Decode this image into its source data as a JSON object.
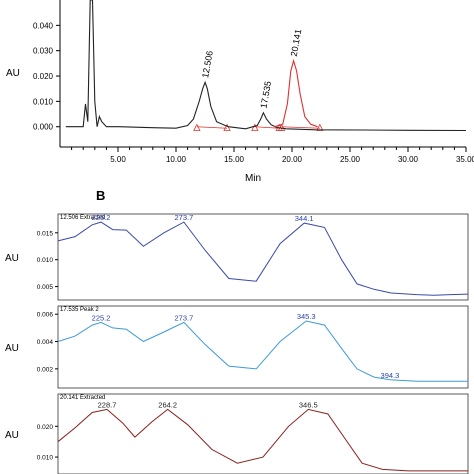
{
  "panel_b_label": "B",
  "chart_data": [
    {
      "type": "line",
      "xlabel": "Min",
      "ylabel": "AU",
      "xlim": [
        0,
        35
      ],
      "ylim": [
        -0.008,
        0.05
      ],
      "x_ticks": [
        "5.00",
        "10.00",
        "15.00",
        "20.00",
        "25.00",
        "30.00",
        "35.00"
      ],
      "y_ticks": [
        "0.000",
        "0.010",
        "0.020",
        "0.030",
        "0.040"
      ],
      "peak_labels": [
        "12.506",
        "17.535",
        "20.141"
      ],
      "series": [
        {
          "color": "#222222",
          "x": [
            0.5,
            1.5,
            2.0,
            2.2,
            2.4,
            2.6,
            2.8,
            3.0,
            3.2,
            3.4,
            3.6,
            4.0,
            5.0,
            8.0,
            10.0,
            11.0,
            11.5,
            12.0,
            12.3,
            12.506,
            12.7,
            13.0,
            13.5,
            14.5,
            16.0,
            17.0,
            17.3,
            17.535,
            17.8,
            18.2,
            18.7,
            19.5,
            22.0,
            26.0,
            30.0,
            35.0
          ],
          "y": [
            0.0,
            0.0,
            0.0,
            0.009,
            0.002,
            0.05,
            0.05,
            0.01,
            0.0,
            0.004,
            0.002,
            0.0,
            0.0,
            -0.0004,
            -0.0006,
            0.0005,
            0.003,
            0.01,
            0.015,
            0.0175,
            0.015,
            0.008,
            0.002,
            0.0,
            -0.0008,
            0.0005,
            0.003,
            0.0055,
            0.003,
            0.0008,
            -0.0003,
            -0.0008,
            -0.0012,
            -0.0013,
            -0.0014,
            -0.0015
          ]
        },
        {
          "color": "#e03030",
          "x": [
            18.5,
            19.2,
            19.6,
            19.9,
            20.141,
            20.4,
            20.7,
            21.1,
            21.6,
            22.2
          ],
          "y": [
            0.0,
            0.001,
            0.009,
            0.022,
            0.026,
            0.022,
            0.013,
            0.004,
            0.001,
            0.0
          ]
        }
      ]
    },
    {
      "type": "line",
      "title": "12.506 Extracted",
      "ylabel": "AU",
      "ylim": [
        0.0025,
        0.0185
      ],
      "y_ticks": [
        "0.005",
        "0.010",
        "0.015"
      ],
      "peak_labels": [
        "225.2",
        "273.7",
        "344.1"
      ],
      "series": [
        {
          "color": "#3a4aa8",
          "x": [
            200,
            210,
            220,
            225.2,
            232,
            240,
            250,
            262,
            273.7,
            286,
            300,
            316,
            330,
            344.1,
            356,
            366,
            375,
            385,
            395,
            410,
            420,
            430,
            440
          ],
          "y": [
            0.0135,
            0.0143,
            0.0165,
            0.017,
            0.0156,
            0.0155,
            0.0125,
            0.015,
            0.017,
            0.0118,
            0.0065,
            0.006,
            0.013,
            0.0168,
            0.016,
            0.01,
            0.0055,
            0.0045,
            0.0038,
            0.0035,
            0.0034,
            0.0035,
            0.0036
          ]
        }
      ]
    },
    {
      "type": "line",
      "title": "17.535 Peak 2",
      "ylabel": "AU",
      "ylim": [
        0.0006,
        0.0066
      ],
      "y_ticks": [
        "0.002",
        "0.004",
        "0.006"
      ],
      "peak_labels": [
        "225.2",
        "273.7",
        "345.3",
        "394.3"
      ],
      "series": [
        {
          "color": "#3f9ad8",
          "x": [
            200,
            210,
            220,
            225.2,
            232,
            240,
            250,
            262,
            273.7,
            286,
            300,
            316,
            330,
            345.3,
            356,
            366,
            375,
            385,
            394.3,
            410,
            420,
            430,
            440
          ],
          "y": [
            0.004,
            0.0044,
            0.0052,
            0.0054,
            0.005,
            0.0049,
            0.004,
            0.0047,
            0.0054,
            0.0038,
            0.0022,
            0.002,
            0.004,
            0.0055,
            0.0052,
            0.0035,
            0.002,
            0.0014,
            0.0012,
            0.0011,
            0.0011,
            0.0011,
            0.0011
          ]
        }
      ]
    },
    {
      "type": "line",
      "title": "20.141 Extracted",
      "ylabel": "AU",
      "ylim": [
        0.0045,
        0.0305
      ],
      "y_ticks": [
        "0.010",
        "0.020"
      ],
      "peak_labels": [
        "228.7",
        "264.2",
        "346.5"
      ],
      "series": [
        {
          "color": "#8a2020",
          "x": [
            200,
            210,
            220,
            228.7,
            238,
            245,
            255,
            264.2,
            276,
            290,
            305,
            320,
            335,
            346.5,
            358,
            368,
            378,
            390,
            405,
            420,
            430,
            440
          ],
          "y": [
            0.015,
            0.0195,
            0.0245,
            0.0255,
            0.021,
            0.0165,
            0.0215,
            0.0255,
            0.0205,
            0.0125,
            0.008,
            0.01,
            0.02,
            0.0255,
            0.024,
            0.016,
            0.008,
            0.006,
            0.0055,
            0.0055,
            0.0055,
            0.0055
          ]
        }
      ]
    }
  ]
}
